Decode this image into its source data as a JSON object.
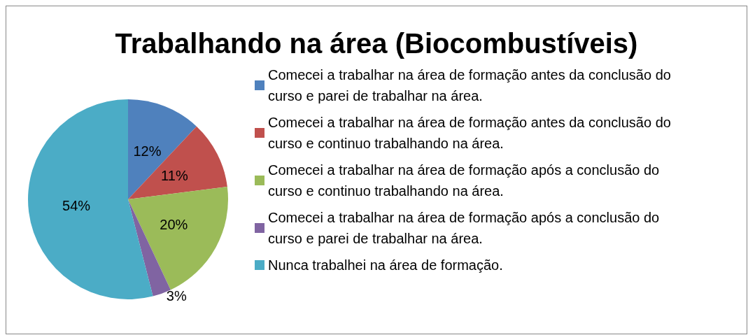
{
  "chart_data": {
    "type": "pie",
    "title": "Trabalhando na área (Biocombustíveis)",
    "categories": [
      "Comecei a trabalhar na área de formação antes da conclusão do curso e parei de trabalhar na área.",
      "Comecei a trabalhar na área de formação antes da conclusão do curso e continuo trabalhando na área.",
      "Comecei a trabalhar na área de formação após a conclusão do curso e continuo trabalhando na área.",
      "Comecei a trabalhar na área de formação após a conclusão do curso e parei de trabalhar na área.",
      "Nunca trabalhei na área de formação."
    ],
    "values": [
      12,
      11,
      20,
      3,
      54
    ],
    "colors": [
      "#4f81bd",
      "#c0504d",
      "#9bbb59",
      "#8064a2",
      "#4bacc6"
    ],
    "value_labels": [
      "12%",
      "11%",
      "20%",
      "3%",
      "54%"
    ],
    "legend": "right"
  }
}
